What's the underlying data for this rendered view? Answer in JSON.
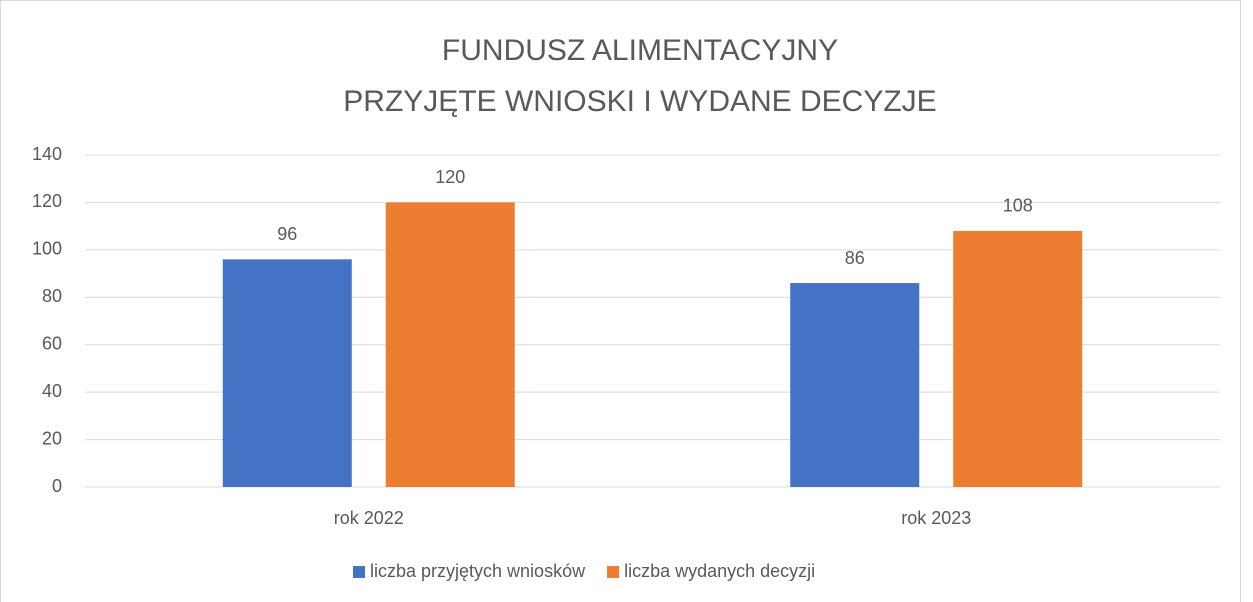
{
  "chart_data": {
    "type": "bar",
    "title": [
      "FUNDUSZ ALIMENTACYJNY",
      "PRZYJĘTE WNIOSKI I WYDANE DECYZJE"
    ],
    "categories": [
      "rok 2022",
      "rok 2023"
    ],
    "series": [
      {
        "name": "liczba przyjętych wniosków",
        "color": "#4472c4",
        "values": [
          96,
          86
        ]
      },
      {
        "name": "liczba wydanych decyzji",
        "color": "#ed7d31",
        "values": [
          120,
          108
        ]
      }
    ],
    "ylim": [
      0,
      140
    ],
    "yticks": [
      0,
      20,
      40,
      60,
      80,
      100,
      120,
      140
    ],
    "grid": true,
    "legend": "bottom"
  }
}
